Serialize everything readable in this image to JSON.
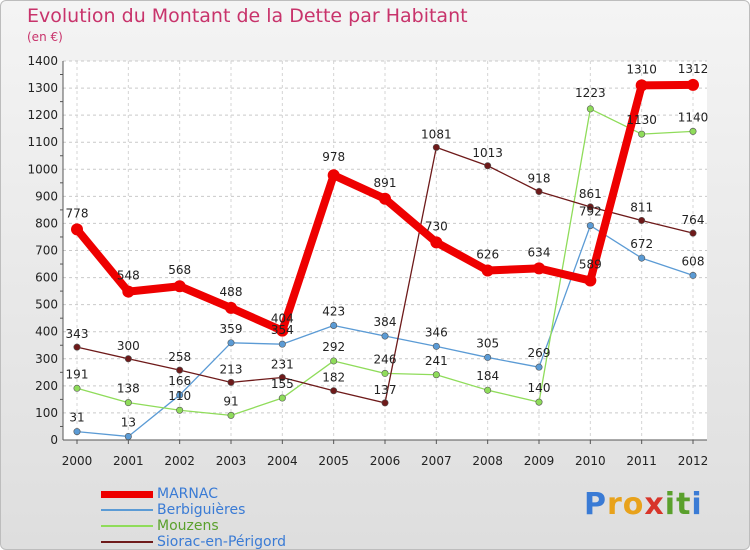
{
  "title": "Evolution du Montant de la Dette par Habitant",
  "unit": "(en €)",
  "logo": {
    "letters": [
      {
        "ch": "P",
        "color": "#3a7bd5"
      },
      {
        "ch": "r",
        "color": "#e8a21b"
      },
      {
        "ch": "o",
        "color": "#e8a21b"
      },
      {
        "ch": "x",
        "color": "#d8352a"
      },
      {
        "ch": "i",
        "color": "#5aa02c"
      },
      {
        "ch": "t",
        "color": "#5aa02c"
      },
      {
        "ch": "i",
        "color": "#3a7bd5"
      }
    ]
  },
  "chart_data": {
    "type": "line",
    "x": [
      "2000",
      "2001",
      "2002",
      "2003",
      "2004",
      "2005",
      "2006",
      "2007",
      "2008",
      "2009",
      "2010",
      "2011",
      "2012"
    ],
    "ylim": [
      0,
      1400
    ],
    "yticks": [
      0,
      100,
      200,
      300,
      400,
      500,
      600,
      700,
      800,
      900,
      1000,
      1100,
      1200,
      1300,
      1400
    ],
    "grid": true,
    "legend_position": "bottom-left",
    "series": [
      {
        "name": "MARNAC",
        "color": "#ee0000",
        "labelColor": "#3a7bd5",
        "width": 8,
        "values": [
          778,
          548,
          568,
          488,
          404,
          978,
          891,
          730,
          626,
          634,
          589,
          1310,
          1312
        ],
        "labels": [
          "778",
          "548",
          "568",
          "488",
          "404",
          "978",
          "891",
          "730",
          "626",
          "634",
          "589",
          "1310",
          "1312"
        ]
      },
      {
        "name": "Berbiguières",
        "color": "#5b9bd5",
        "labelColor": "#3a7bd5",
        "width": 1.3,
        "values": [
          31,
          13,
          166,
          359,
          354,
          423,
          384,
          346,
          305,
          269,
          792,
          672,
          608
        ],
        "labels": [
          "31",
          "13",
          "166",
          "359",
          "354",
          "423",
          "384",
          "346",
          "305",
          "269",
          "792",
          "672",
          "608"
        ]
      },
      {
        "name": "Mouzens",
        "color": "#8fdc5a",
        "labelColor": "#5aa02c",
        "width": 1.3,
        "values": [
          191,
          138,
          110,
          91,
          155,
          292,
          246,
          241,
          184,
          140,
          1223,
          1130,
          1140
        ],
        "labels": [
          "191",
          "138",
          "110",
          "91",
          "155",
          "292",
          "246",
          "241",
          "184",
          "140",
          "1223",
          "1130",
          "1140"
        ]
      },
      {
        "name": "Siorac-en-Périgord",
        "color": "#6e1a1a",
        "labelColor": "#3a7bd5",
        "width": 1.3,
        "values": [
          343,
          300,
          258,
          213,
          231,
          182,
          137,
          1081,
          1013,
          918,
          861,
          811,
          764
        ],
        "labels": [
          "343",
          "300",
          "258",
          "213",
          "231",
          "182",
          "137",
          "1081",
          "1013",
          "918",
          "861",
          "811",
          "764"
        ]
      }
    ]
  }
}
